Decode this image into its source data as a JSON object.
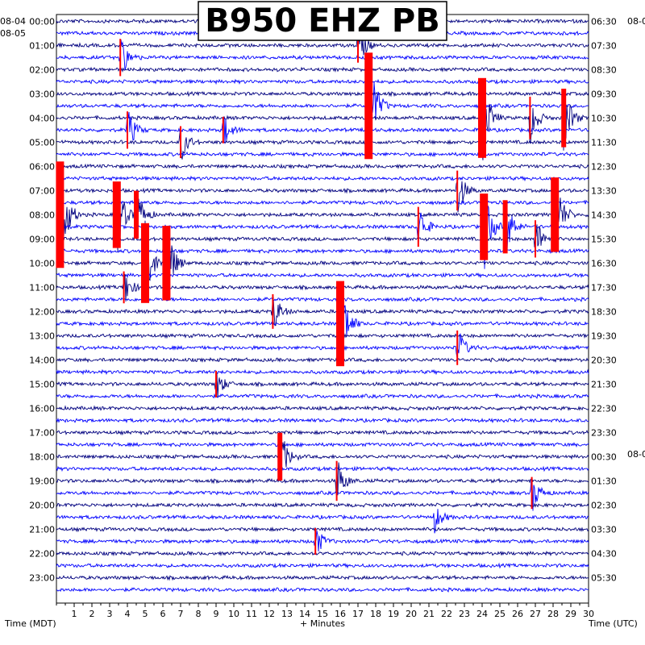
{
  "chart_data": {
    "type": "line",
    "title": "B950 EHZ PB",
    "xlabel": "+ Minutes",
    "left_axis_label": "Time (MDT)",
    "right_axis_label": "Time (UTC)",
    "x_ticks": [
      "1",
      "2",
      "3",
      "4",
      "5",
      "6",
      "7",
      "8",
      "9",
      "10",
      "11",
      "12",
      "13",
      "14",
      "15",
      "16",
      "17",
      "18",
      "19",
      "20",
      "21",
      "22",
      "23",
      "24",
      "25",
      "26",
      "27",
      "28",
      "29",
      "30"
    ],
    "xlim": [
      0,
      30
    ],
    "left_date_labels": [
      "08-04",
      "08-05"
    ],
    "right_date_labels": [
      "08-0",
      "08-0"
    ],
    "left_hour_labels": [
      "00:00",
      "01:00",
      "02:00",
      "03:00",
      "04:00",
      "05:00",
      "06:00",
      "07:00",
      "08:00",
      "09:00",
      "10:00",
      "11:00",
      "12:00",
      "13:00",
      "14:00",
      "15:00",
      "16:00",
      "17:00",
      "18:00",
      "19:00",
      "20:00",
      "21:00",
      "22:00",
      "23:00"
    ],
    "right_hour_labels": [
      "06:30",
      "07:30",
      "08:30",
      "09:30",
      "10:30",
      "11:30",
      "12:30",
      "13:30",
      "14:30",
      "15:30",
      "16:30",
      "17:30",
      "18:30",
      "19:30",
      "20:30",
      "21:30",
      "22:30",
      "23:30",
      "00:30",
      "01:30",
      "02:30",
      "03:30",
      "04:30",
      "05:30"
    ],
    "trace_count": 48,
    "trace_colors": [
      "#00007f",
      "#0000ff"
    ],
    "clip_color": "#ff0000",
    "events": [
      {
        "trace": 3,
        "minute": 3.6,
        "amp": 1.4
      },
      {
        "trace": 2,
        "minute": 17.0,
        "amp": 1.3
      },
      {
        "trace": 7,
        "minute": 17.6,
        "amp": 4.0
      },
      {
        "trace": 8,
        "minute": 24.0,
        "amp": 3.0
      },
      {
        "trace": 8,
        "minute": 26.7,
        "amp": 1.6
      },
      {
        "trace": 8,
        "minute": 28.6,
        "amp": 2.2
      },
      {
        "trace": 9,
        "minute": 4.0,
        "amp": 1.4
      },
      {
        "trace": 9,
        "minute": 9.4,
        "amp": 1.0
      },
      {
        "trace": 10,
        "minute": 7.0,
        "amp": 1.2
      },
      {
        "trace": 14,
        "minute": 22.6,
        "amp": 1.5
      },
      {
        "trace": 16,
        "minute": 0.2,
        "amp": 4.0
      },
      {
        "trace": 16,
        "minute": 3.4,
        "amp": 2.5
      },
      {
        "trace": 16,
        "minute": 4.5,
        "amp": 1.8
      },
      {
        "trace": 16,
        "minute": 28.1,
        "amp": 2.8
      },
      {
        "trace": 17,
        "minute": 20.4,
        "amp": 1.5
      },
      {
        "trace": 17,
        "minute": 24.1,
        "amp": 2.5
      },
      {
        "trace": 17,
        "minute": 25.3,
        "amp": 2.0
      },
      {
        "trace": 18,
        "minute": 27.0,
        "amp": 1.4
      },
      {
        "trace": 20,
        "minute": 5.0,
        "amp": 3.0
      },
      {
        "trace": 20,
        "minute": 6.2,
        "amp": 2.8
      },
      {
        "trace": 22,
        "minute": 3.8,
        "amp": 1.2
      },
      {
        "trace": 24,
        "minute": 12.2,
        "amp": 1.3
      },
      {
        "trace": 25,
        "minute": 16.0,
        "amp": 3.2
      },
      {
        "trace": 27,
        "minute": 22.6,
        "amp": 1.3
      },
      {
        "trace": 30,
        "minute": 9.0,
        "amp": 1.0
      },
      {
        "trace": 36,
        "minute": 12.6,
        "amp": 1.8
      },
      {
        "trace": 38,
        "minute": 15.8,
        "amp": 1.5
      },
      {
        "trace": 39,
        "minute": 26.8,
        "amp": 1.2
      },
      {
        "trace": 41,
        "minute": 21.3,
        "amp": 0.9
      },
      {
        "trace": 43,
        "minute": 14.6,
        "amp": 1.0
      }
    ]
  }
}
